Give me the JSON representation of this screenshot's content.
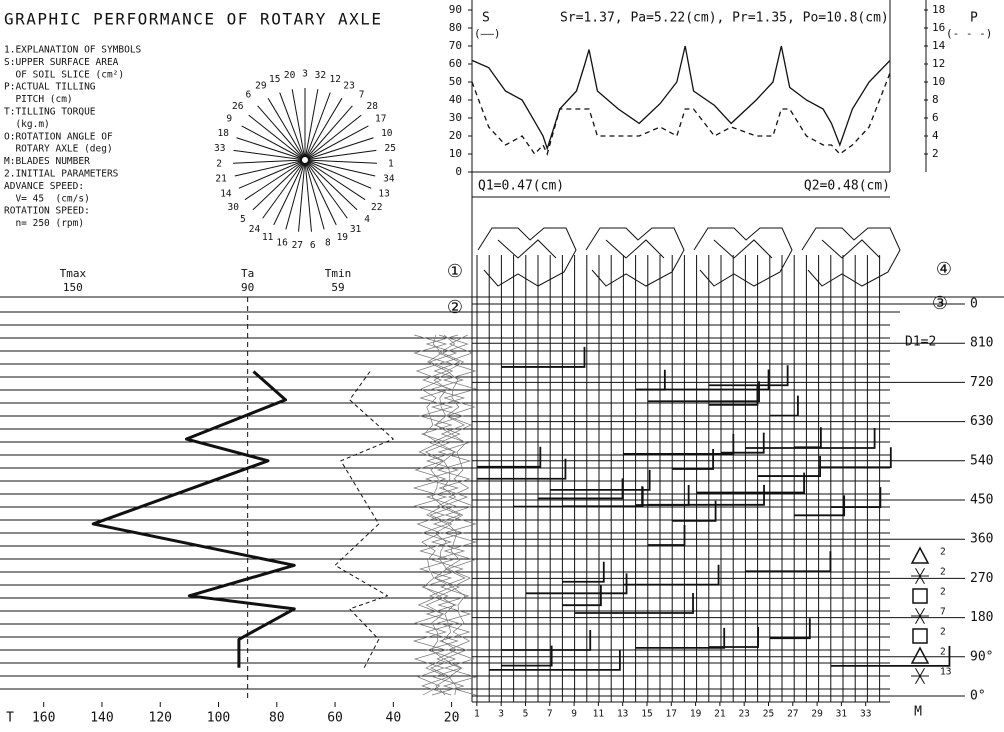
{
  "header": {
    "title": "GRAPHIC PERFORMANCE OF ROTARY AXLE",
    "notes": [
      "1.EXPLANATION OF SYMBOLS",
      "S:UPPER SURFACE AREA",
      "  OF SOIL SLICE (cm²)",
      "P:ACTUAL TILLING",
      "  PITCH (cm)",
      "T:TILLING TORQUE",
      "  (kg.m)",
      "O:ROTATION ANGLE OF",
      "  ROTARY AXLE (deg)",
      "M:BLADES NUMBER",
      "2.INITIAL PARAMETERS",
      "ADVANCE SPEED:",
      "  V= 45  (cm/s)",
      "ROTATION SPEED:",
      "  n= 250 (rpm)"
    ]
  },
  "blade_circle": {
    "labels": [
      "3",
      "32",
      "12",
      "23",
      "7",
      "28",
      "17",
      "10",
      "25",
      "1",
      "34",
      "13",
      "22",
      "4",
      "31",
      "19",
      "8",
      "6",
      "27",
      "16",
      "11",
      "24",
      "5",
      "30",
      "14",
      "21",
      "2",
      "33",
      "18",
      "9",
      "26",
      "6",
      "29",
      "15",
      "20"
    ]
  },
  "callouts": [
    "①",
    "②",
    "③",
    "④"
  ],
  "chart_data": [
    {
      "type": "line",
      "title": "Sr=1.37, Pa=5.22(cm), Pr=1.35, Po=10.8(cm)",
      "x": [
        0,
        4,
        8,
        12,
        15,
        17,
        18,
        21,
        25,
        27,
        28,
        30,
        35,
        40,
        45,
        49,
        51,
        53,
        58,
        62,
        68,
        72,
        74,
        76,
        80,
        84,
        86,
        88,
        91,
        95,
        100
      ],
      "xlim": [
        0,
        100
      ],
      "ylim": [
        0,
        90
      ],
      "yticks": [
        0,
        10,
        20,
        30,
        40,
        50,
        60,
        70,
        80,
        90
      ],
      "y2lim": [
        0,
        18
      ],
      "y2ticks": [
        2,
        4,
        6,
        8,
        10,
        12,
        14,
        16,
        18
      ],
      "series": [
        {
          "name": "S",
          "legend": "(——)",
          "color": "#111111",
          "style": "solid",
          "values": [
            62,
            58,
            45,
            40,
            28,
            20,
            13,
            35,
            45,
            60,
            68,
            45,
            35,
            27,
            38,
            50,
            70,
            45,
            37,
            27,
            40,
            50,
            70,
            47,
            40,
            35,
            27,
            15,
            35,
            50,
            62
          ]
        },
        {
          "name": "P",
          "legend": "(- - -)",
          "color": "#111111",
          "style": "dashed",
          "axis": "y2",
          "values": [
            10,
            5,
            3,
            4,
            2,
            3,
            2,
            7,
            7,
            7,
            7,
            4,
            4,
            4,
            5,
            4,
            7,
            7,
            4,
            5,
            4,
            4,
            7,
            7,
            4,
            3,
            3,
            2,
            3,
            5,
            11
          ]
        }
      ],
      "annotations": [
        "Q1=0.47(cm)",
        "Q2=0.48(cm)"
      ]
    },
    {
      "type": "vline",
      "xlabel": "T",
      "angles": [
        745,
        680,
        590,
        540,
        395,
        300,
        230,
        200,
        130,
        65
      ],
      "xlim": [
        175,
        13
      ],
      "xticks": [
        160,
        140,
        120,
        100,
        80,
        60,
        40,
        20
      ],
      "ylim": [
        0,
        900
      ],
      "markers": [
        {
          "label": "Tmax",
          "value": 150
        },
        {
          "label": "Ta",
          "value": 90
        },
        {
          "label": "Tmin",
          "value": 59
        }
      ],
      "series": [
        {
          "color": "#111111",
          "style": "solid",
          "width": 3,
          "values": [
            88,
            77,
            111,
            83,
            143,
            74,
            110,
            74,
            93,
            93
          ]
        },
        {
          "color": "#111111",
          "style": "dashed",
          "width": 1,
          "values": [
            48,
            55,
            40,
            58,
            45,
            60,
            42,
            55,
            45,
            50
          ]
        }
      ]
    },
    {
      "type": "grid",
      "xlabel": "M",
      "xlim": [
        0.6,
        35
      ],
      "xticks": [
        1,
        3,
        5,
        7,
        9,
        11,
        13,
        15,
        17,
        19,
        21,
        23,
        25,
        27,
        29,
        31,
        33
      ],
      "ylim": [
        0,
        900
      ],
      "yticks": [
        {
          "value": 0,
          "label": "0°"
        },
        {
          "value": 90,
          "label": "90°"
        },
        180,
        270,
        360,
        450,
        540,
        630,
        720,
        810,
        {
          "value": 900,
          "label": "0"
        }
      ],
      "annotation": "D1=2",
      "symbols": [
        {
          "shape": "triangle",
          "count": 2
        },
        {
          "shape": "asterisk",
          "count": 2
        },
        {
          "shape": "square",
          "count": 2
        },
        {
          "shape": "asterisk",
          "count": 7
        },
        {
          "shape": "square",
          "count": 2
        },
        {
          "shape": "triangle",
          "count": 2
        },
        {
          "shape": "asterisk",
          "count": 13
        }
      ]
    }
  ]
}
